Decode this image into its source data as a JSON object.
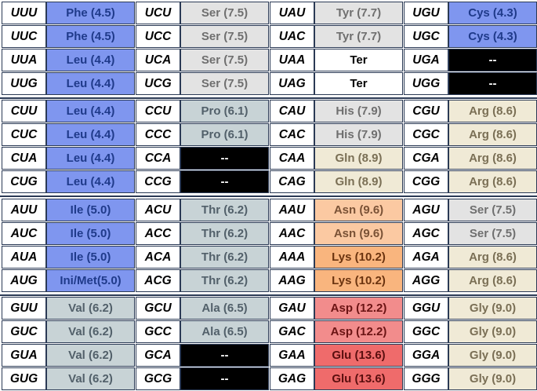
{
  "colors": {
    "hydrophobic_blue": "#7f96ef",
    "neutral_grey": "#e3e3e3",
    "slate": "#c8d3d6",
    "beige": "#f0ead6",
    "peach": "#fbc9a2",
    "orange": "#f9b57e",
    "salmon": "#f28c8c",
    "red": "#ef6b6b",
    "black": "#000000",
    "white": "#ffffff"
  },
  "blocks": [
    {
      "rows": [
        [
          [
            "UUU",
            "Phe (4.5)",
            "hydrophobic_blue"
          ],
          [
            "UCU",
            "Ser (7.5)",
            "neutral_grey"
          ],
          [
            "UAU",
            "Tyr (7.7)",
            "neutral_grey"
          ],
          [
            "UGU",
            "Cys (4.3)",
            "hydrophobic_blue"
          ]
        ],
        [
          [
            "UUC",
            "Phe (4.5)",
            "hydrophobic_blue"
          ],
          [
            "UCC",
            "Ser (7.5)",
            "neutral_grey"
          ],
          [
            "UAC",
            "Tyr (7.7)",
            "neutral_grey"
          ],
          [
            "UGC",
            "Cys (4.3)",
            "hydrophobic_blue"
          ]
        ],
        [
          [
            "UUA",
            "Leu (4.4)",
            "hydrophobic_blue"
          ],
          [
            "UCA",
            "Ser (7.5)",
            "neutral_grey"
          ],
          [
            "UAA",
            "Ter",
            "white"
          ],
          [
            "UGA",
            "--",
            "black"
          ]
        ],
        [
          [
            "UUG",
            "Leu (4.4)",
            "hydrophobic_blue"
          ],
          [
            "UCG",
            "Ser (7.5)",
            "neutral_grey"
          ],
          [
            "UAG",
            "Ter",
            "white"
          ],
          [
            "UGG",
            "--",
            "black"
          ]
        ]
      ]
    },
    {
      "rows": [
        [
          [
            "CUU",
            "Leu (4.4)",
            "hydrophobic_blue"
          ],
          [
            "CCU",
            "Pro (6.1)",
            "slate"
          ],
          [
            "CAU",
            "His (7.9)",
            "neutral_grey"
          ],
          [
            "CGU",
            "Arg (8.6)",
            "beige"
          ]
        ],
        [
          [
            "CUC",
            "Leu (4.4)",
            "hydrophobic_blue"
          ],
          [
            "CCC",
            "Pro (6.1)",
            "slate"
          ],
          [
            "CAC",
            "His (7.9)",
            "neutral_grey"
          ],
          [
            "CGC",
            "Arg (8.6)",
            "beige"
          ]
        ],
        [
          [
            "CUA",
            "Leu (4.4)",
            "hydrophobic_blue"
          ],
          [
            "CCA",
            "--",
            "black"
          ],
          [
            "CAA",
            "Gln (8.9)",
            "beige"
          ],
          [
            "CGA",
            "Arg (8.6)",
            "beige"
          ]
        ],
        [
          [
            "CUG",
            "Leu (4.4)",
            "hydrophobic_blue"
          ],
          [
            "CCG",
            "--",
            "black"
          ],
          [
            "CAG",
            "Gln (8.9)",
            "beige"
          ],
          [
            "CGG",
            "Arg (8.6)",
            "beige"
          ]
        ]
      ]
    },
    {
      "rows": [
        [
          [
            "AUU",
            "Ile (5.0)",
            "hydrophobic_blue"
          ],
          [
            "ACU",
            "Thr (6.2)",
            "slate"
          ],
          [
            "AAU",
            "Asn (9.6)",
            "peach"
          ],
          [
            "AGU",
            "Ser (7.5)",
            "neutral_grey"
          ]
        ],
        [
          [
            "AUC",
            "Ile (5.0)",
            "hydrophobic_blue"
          ],
          [
            "ACC",
            "Thr (6.2)",
            "slate"
          ],
          [
            "AAC",
            "Asn (9.6)",
            "peach"
          ],
          [
            "AGC",
            "Ser (7.5)",
            "neutral_grey"
          ]
        ],
        [
          [
            "AUA",
            "Ile (5.0)",
            "hydrophobic_blue"
          ],
          [
            "ACA",
            "Thr (6.2)",
            "slate"
          ],
          [
            "AAA",
            "Lys (10.2)",
            "orange"
          ],
          [
            "AGA",
            "Arg (8.6)",
            "beige"
          ]
        ],
        [
          [
            "AUG",
            "Ini/Met(5.0)",
            "hydrophobic_blue"
          ],
          [
            "ACG",
            "Thr (6.2)",
            "slate"
          ],
          [
            "AAG",
            "Lys (10.2)",
            "orange"
          ],
          [
            "AGG",
            "Arg (8.6)",
            "beige"
          ]
        ]
      ]
    },
    {
      "rows": [
        [
          [
            "GUU",
            "Val (6.2)",
            "slate"
          ],
          [
            "GCU",
            "Ala (6.5)",
            "slate"
          ],
          [
            "GAU",
            "Asp (12.2)",
            "salmon"
          ],
          [
            "GGU",
            "Gly (9.0)",
            "beige"
          ]
        ],
        [
          [
            "GUC",
            "Val (6.2)",
            "slate"
          ],
          [
            "GCC",
            "Ala (6.5)",
            "slate"
          ],
          [
            "GAC",
            "Asp (12.2)",
            "salmon"
          ],
          [
            "GGC",
            "Gly (9.0)",
            "beige"
          ]
        ],
        [
          [
            "GUA",
            "Val (6.2)",
            "slate"
          ],
          [
            "GCA",
            "--",
            "black"
          ],
          [
            "GAA",
            "Glu (13.6)",
            "red"
          ],
          [
            "GGA",
            "Gly (9.0)",
            "beige"
          ]
        ],
        [
          [
            "GUG",
            "Val (6.2)",
            "slate"
          ],
          [
            "GCG",
            "--",
            "black"
          ],
          [
            "GAG",
            "Glu (13.6)",
            "red"
          ],
          [
            "GGG",
            "Gly (9.0)",
            "beige"
          ]
        ]
      ]
    }
  ]
}
